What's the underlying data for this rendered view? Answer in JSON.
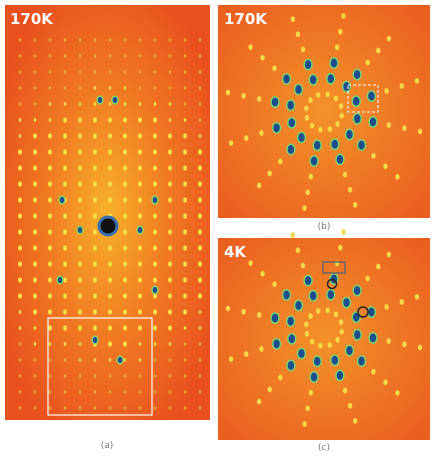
{
  "panels": [
    {
      "label": "170K",
      "caption": "(a)"
    },
    {
      "label": "170K",
      "caption": "(b)"
    },
    {
      "label": "4K",
      "caption": "(c)"
    }
  ]
}
